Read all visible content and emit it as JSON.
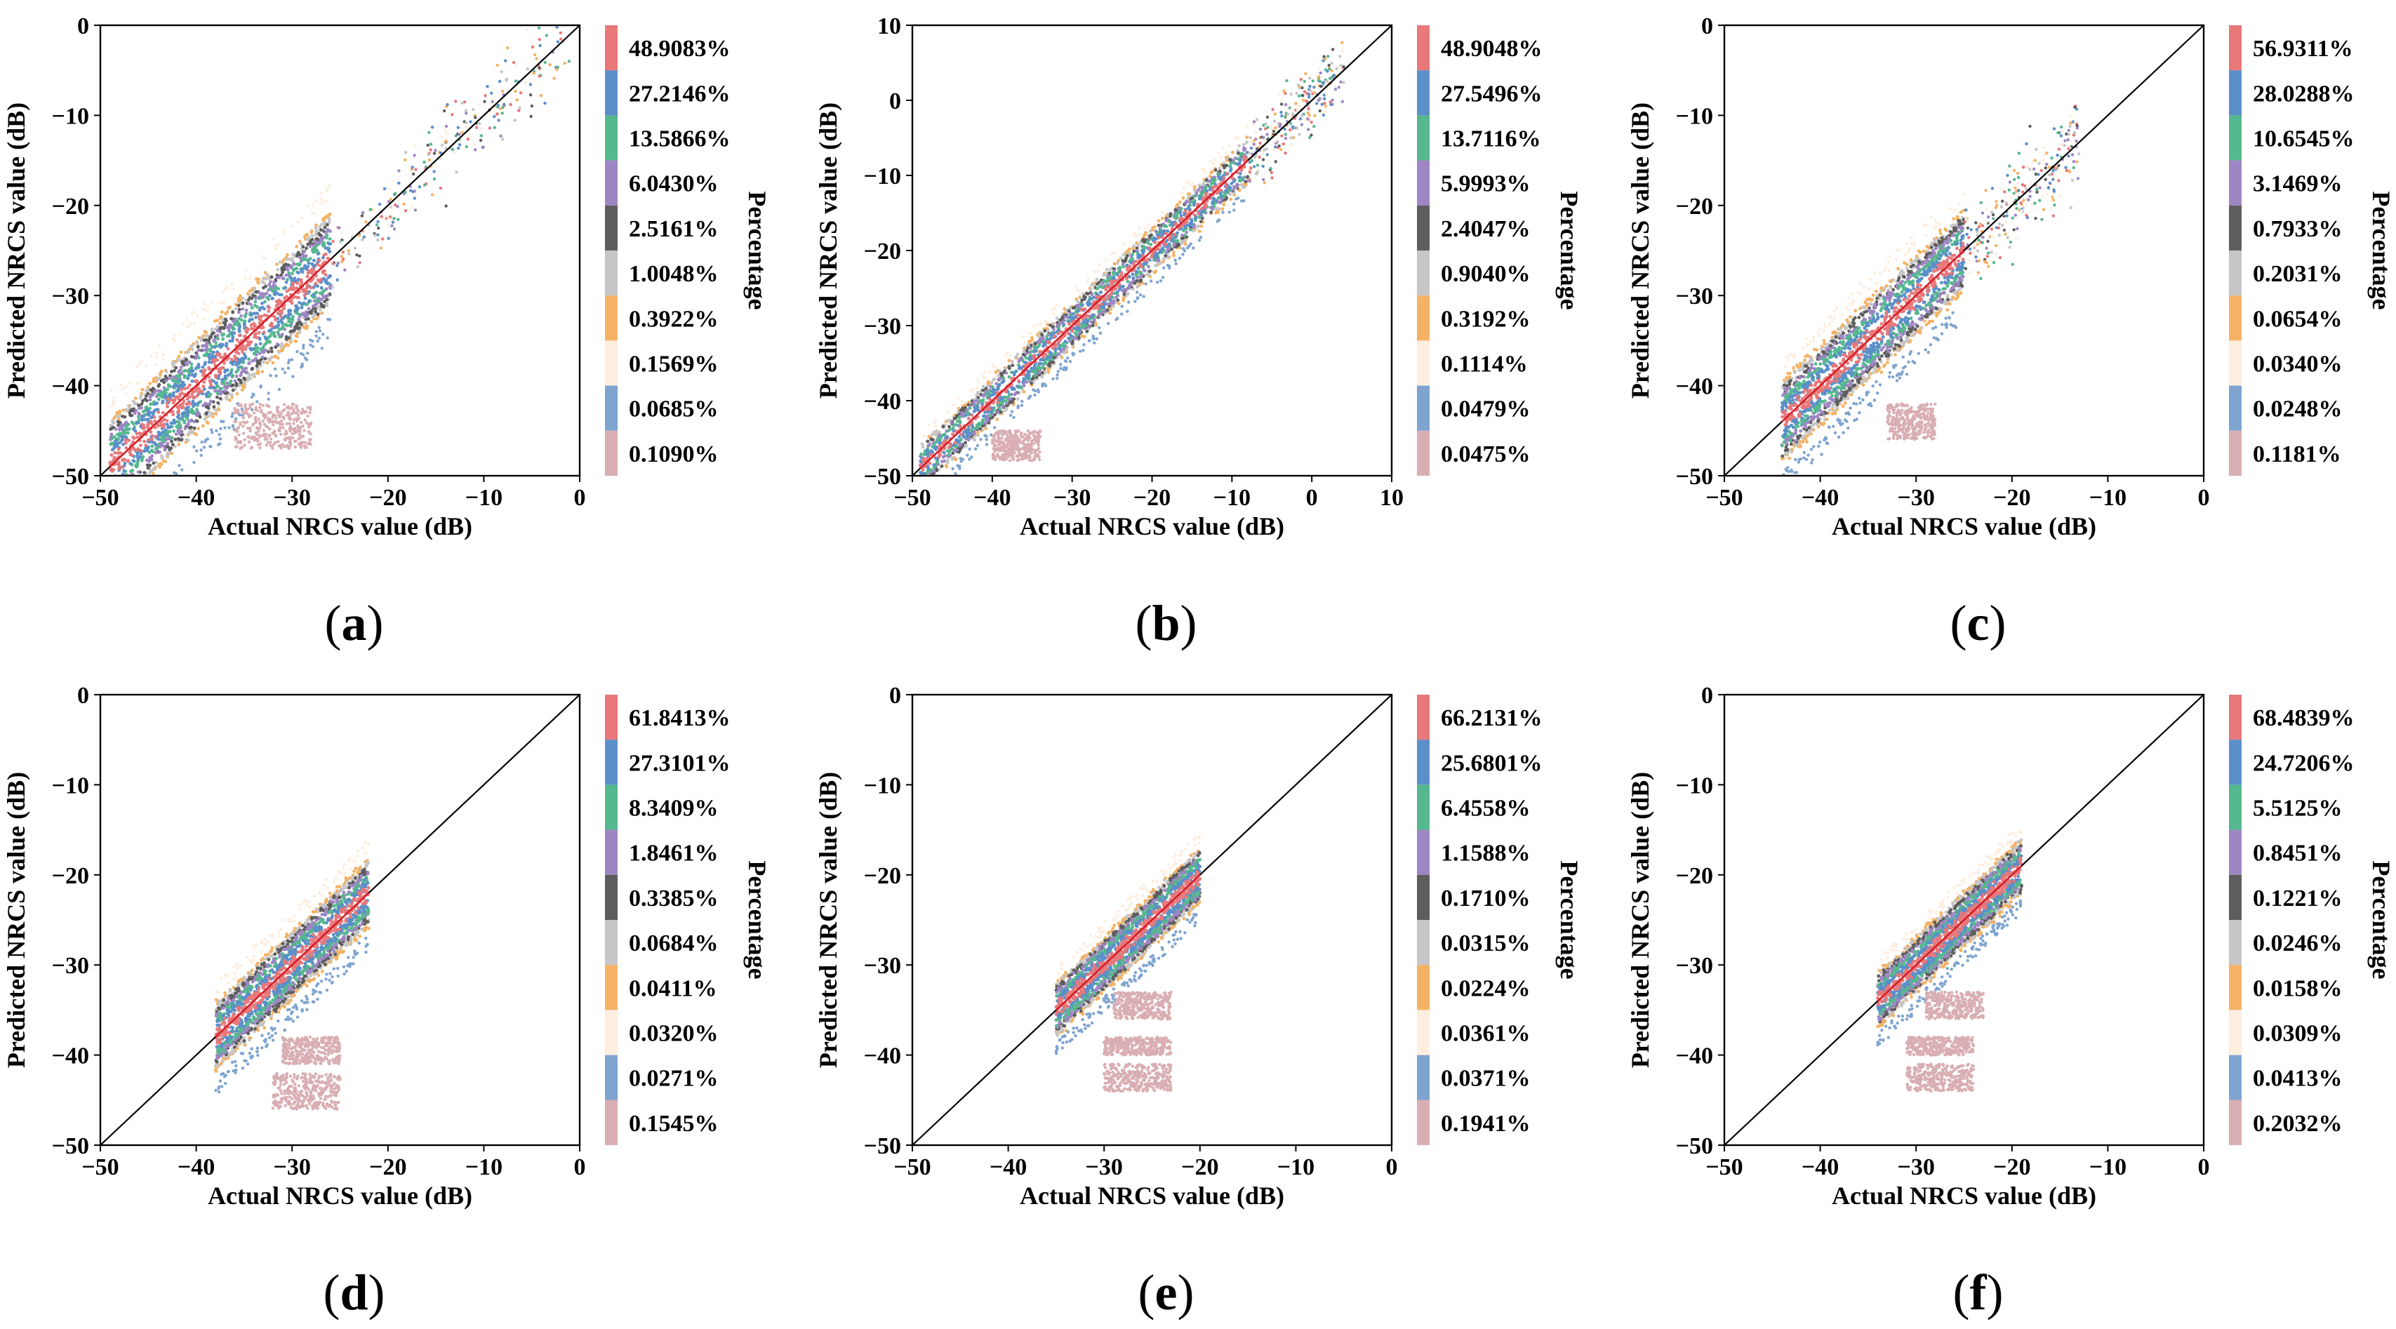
{
  "chart_data": [
    {
      "type": "scatter",
      "panel_label": "(a)",
      "xlabel": "Actual NRCS value (dB)",
      "ylabel": "Predicted NRCS value (dB)",
      "xlim": [
        -50,
        0
      ],
      "ylim": [
        -50,
        0
      ],
      "xticks": [
        -50,
        -40,
        -30,
        -20,
        -10,
        0
      ],
      "yticks": [
        -50,
        -40,
        -30,
        -20,
        -10,
        0
      ],
      "colorbar_label": "Percentage",
      "legend": [
        "48.9083%",
        "27.2146%",
        "13.5866%",
        "6.0430%",
        "2.5161%",
        "1.0048%",
        "0.3922%",
        "0.1569%",
        "0.0685%",
        "0.1090%"
      ],
      "main_cluster": {
        "x_range": [
          -49,
          -26
        ],
        "band_halfwidth_db": 7,
        "sparse_tail_to": -1
      },
      "outlier_blobs": [
        {
          "x": [
            -36,
            -28
          ],
          "y": [
            -47,
            -42
          ]
        }
      ]
    },
    {
      "type": "scatter",
      "panel_label": "(b)",
      "xlabel": "Actual NRCS value (dB)",
      "ylabel": "Predicted NRCS value (dB)",
      "xlim": [
        -50,
        10
      ],
      "ylim": [
        -50,
        10
      ],
      "xticks": [
        -50,
        -40,
        -30,
        -20,
        -10,
        0,
        10
      ],
      "yticks": [
        -50,
        -40,
        -30,
        -20,
        -10,
        0,
        10
      ],
      "colorbar_label": "Percentage",
      "legend": [
        "48.9048%",
        "27.5496%",
        "13.7116%",
        "5.9993%",
        "2.4047%",
        "0.9040%",
        "0.3192%",
        "0.1114%",
        "0.0479%",
        "0.0475%"
      ],
      "main_cluster": {
        "x_range": [
          -49,
          -8
        ],
        "band_halfwidth_db": 4,
        "sparse_tail_to": 4
      },
      "outlier_blobs": [
        {
          "x": [
            -40,
            -34
          ],
          "y": [
            -48,
            -44
          ]
        }
      ]
    },
    {
      "type": "scatter",
      "panel_label": "(c)",
      "xlabel": "Actual NRCS value (dB)",
      "ylabel": "Predicted NRCS value (dB)",
      "xlim": [
        -50,
        0
      ],
      "ylim": [
        -50,
        0
      ],
      "xticks": [
        -50,
        -40,
        -30,
        -20,
        -10,
        0
      ],
      "yticks": [
        -50,
        -40,
        -30,
        -20,
        -10,
        0
      ],
      "colorbar_label": "Percentage",
      "legend": [
        "56.9311%",
        "28.0288%",
        "10.6545%",
        "3.1469%",
        "0.7933%",
        "0.2031%",
        "0.0654%",
        "0.0340%",
        "0.0248%",
        "0.1181%"
      ],
      "main_cluster": {
        "x_range": [
          -44,
          -25
        ],
        "band_halfwidth_db": 6,
        "sparse_tail_to": -13
      },
      "outlier_blobs": [
        {
          "x": [
            -33,
            -28
          ],
          "y": [
            -46,
            -42
          ]
        }
      ]
    },
    {
      "type": "scatter",
      "panel_label": "(d)",
      "xlabel": "Actual NRCS value (dB)",
      "ylabel": "Predicted NRCS value (dB)",
      "xlim": [
        -50,
        0
      ],
      "ylim": [
        -50,
        0
      ],
      "xticks": [
        -50,
        -40,
        -30,
        -20,
        -10,
        0
      ],
      "yticks": [
        -50,
        -40,
        -30,
        -20,
        -10,
        0
      ],
      "colorbar_label": "Percentage",
      "legend": [
        "61.8413%",
        "27.3101%",
        "8.3409%",
        "1.8461%",
        "0.3385%",
        "0.0684%",
        "0.0411%",
        "0.0320%",
        "0.0271%",
        "0.1545%"
      ],
      "main_cluster": {
        "x_range": [
          -38,
          -22
        ],
        "band_halfwidth_db": 5,
        "sparse_tail_to": -22
      },
      "outlier_blobs": [
        {
          "x": [
            -31,
            -25
          ],
          "y": [
            -41,
            -38
          ]
        },
        {
          "x": [
            -32,
            -25
          ],
          "y": [
            -46,
            -42
          ]
        }
      ]
    },
    {
      "type": "scatter",
      "panel_label": "(e)",
      "xlabel": "Actual NRCS value (dB)",
      "ylabel": "Predicted NRCS value (dB)",
      "xlim": [
        -50,
        0
      ],
      "ylim": [
        -50,
        0
      ],
      "xticks": [
        -50,
        -40,
        -30,
        -20,
        -10,
        0
      ],
      "yticks": [
        -50,
        -40,
        -30,
        -20,
        -10,
        0
      ],
      "colorbar_label": "Percentage",
      "legend": [
        "66.2131%",
        "25.6801%",
        "6.4558%",
        "1.1588%",
        "0.1710%",
        "0.0315%",
        "0.0224%",
        "0.0361%",
        "0.0371%",
        "0.1941%"
      ],
      "main_cluster": {
        "x_range": [
          -35,
          -20
        ],
        "band_halfwidth_db": 4,
        "sparse_tail_to": -20
      },
      "outlier_blobs": [
        {
          "x": [
            -29,
            -23
          ],
          "y": [
            -36,
            -33
          ]
        },
        {
          "x": [
            -30,
            -23
          ],
          "y": [
            -40,
            -38
          ]
        },
        {
          "x": [
            -30,
            -23
          ],
          "y": [
            -44,
            -41
          ]
        }
      ]
    },
    {
      "type": "scatter",
      "panel_label": "(f)",
      "xlabel": "Actual NRCS value (dB)",
      "ylabel": "Predicted NRCS value (dB)",
      "xlim": [
        -50,
        0
      ],
      "ylim": [
        -50,
        0
      ],
      "xticks": [
        -50,
        -40,
        -30,
        -20,
        -10,
        0
      ],
      "yticks": [
        -50,
        -40,
        -30,
        -20,
        -10,
        0
      ],
      "colorbar_label": "Percentage",
      "legend": [
        "68.4839%",
        "24.7206%",
        "5.5125%",
        "0.8451%",
        "0.1221%",
        "0.0246%",
        "0.0158%",
        "0.0309%",
        "0.0413%",
        "0.2032%"
      ],
      "main_cluster": {
        "x_range": [
          -34,
          -19
        ],
        "band_halfwidth_db": 4,
        "sparse_tail_to": -19
      },
      "outlier_blobs": [
        {
          "x": [
            -29,
            -23
          ],
          "y": [
            -36,
            -33
          ]
        },
        {
          "x": [
            -31,
            -24
          ],
          "y": [
            -40,
            -38
          ]
        },
        {
          "x": [
            -31,
            -24
          ],
          "y": [
            -44,
            -41
          ]
        }
      ]
    }
  ],
  "colors": {
    "classes": [
      "#e8787a",
      "#5b8fca",
      "#55b88e",
      "#9e86c4",
      "#5d5d5d",
      "#c6c6c6",
      "#f5b264",
      "#fdeee0",
      "#7ea4cf",
      "#d9aeb2"
    ],
    "diagonal": "#000000",
    "fit_line": "#d6202a"
  }
}
